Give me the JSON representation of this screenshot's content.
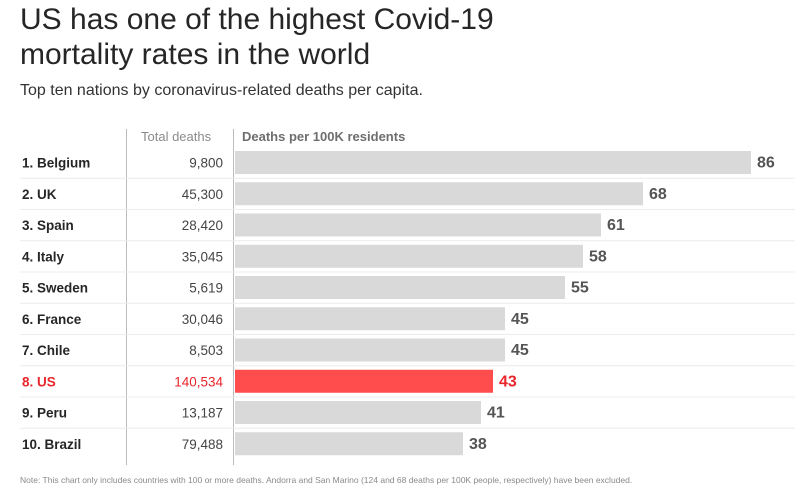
{
  "title": "US has one of the highest Covid-19 mortality rates in the world",
  "subtitle": "Top ten nations by coronavirus-related deaths per capita.",
  "columns": {
    "total": "Total deaths",
    "rate": "Deaths per 100K residents"
  },
  "note": "Note: This chart only includes countries with 100 or more deaths. Andorra and San Marino (124 and 68 deaths per 100K people, respectively) have been excluded.",
  "colors": {
    "bar": "#d9d9d9",
    "highlight": "#ff4d4d",
    "highlight_text": "#e8262b",
    "text": "#262626",
    "value": "#555555"
  },
  "chart_data": {
    "type": "bar",
    "orientation": "horizontal",
    "rows": [
      {
        "label": "1. Belgium",
        "total": "9,800",
        "value": 86
      },
      {
        "label": "2. UK",
        "total": "45,300",
        "value": 68
      },
      {
        "label": "3. Spain",
        "total": "28,420",
        "value": 61
      },
      {
        "label": "4. Italy",
        "total": "35,045",
        "value": 58
      },
      {
        "label": "5. Sweden",
        "total": "5,619",
        "value": 55
      },
      {
        "label": "6. France",
        "total": "30,046",
        "value": 45
      },
      {
        "label": "7. Chile",
        "total": "8,503",
        "value": 45
      },
      {
        "label": "8. US",
        "total": "140,534",
        "value": 43,
        "highlight": true
      },
      {
        "label": "9. Peru",
        "total": "13,187",
        "value": 41
      },
      {
        "label": "10. Brazil",
        "total": "79,488",
        "value": 38
      }
    ]
  }
}
